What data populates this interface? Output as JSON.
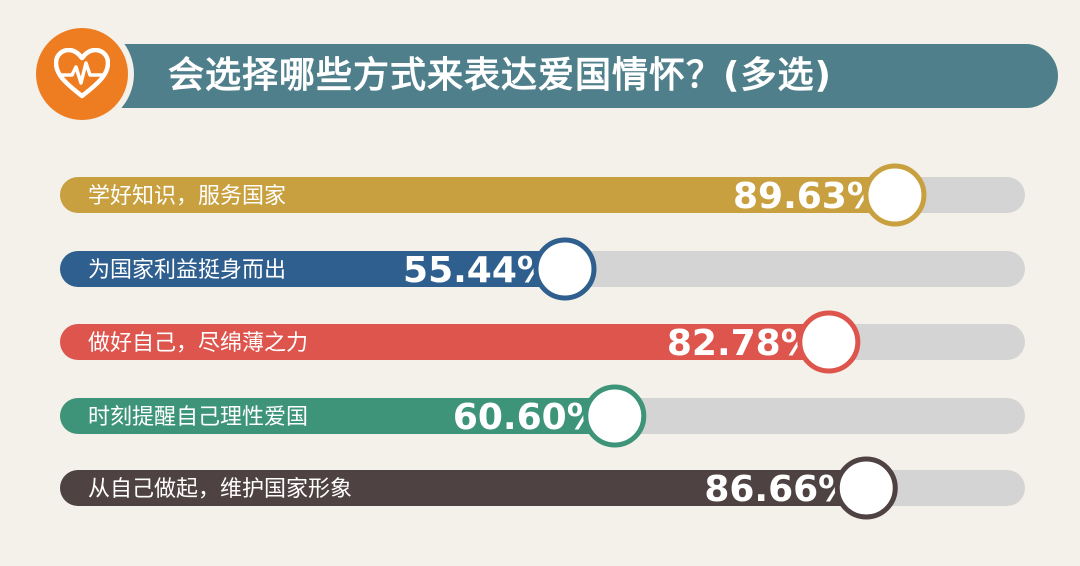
{
  "header": {
    "title": "会选择哪些方式来表达爱国情怀？(多选)",
    "icon": "heart-pulse-icon"
  },
  "chart_data": {
    "type": "bar",
    "title": "会选择哪些方式来表达爱国情怀？(多选)",
    "orientation": "horizontal",
    "xlim": [
      0,
      100
    ],
    "unit": "%",
    "categories": [
      "学好知识，服务国家",
      "为国家利益挺身而出",
      "做好自己，尽绵薄之力",
      "时刻提醒自己理性爱国",
      "从自己做起，维护国家形象"
    ],
    "values": [
      89.63,
      55.44,
      82.78,
      60.6,
      86.66
    ],
    "labels": [
      "89.63%",
      "55.44%",
      "82.78%",
      "60.60%",
      "86.66%"
    ],
    "colors": [
      "#c8a03f",
      "#2f5f8e",
      "#dd554c",
      "#3d9478",
      "#4e4342"
    ],
    "track_color": "#d4d4d4"
  }
}
